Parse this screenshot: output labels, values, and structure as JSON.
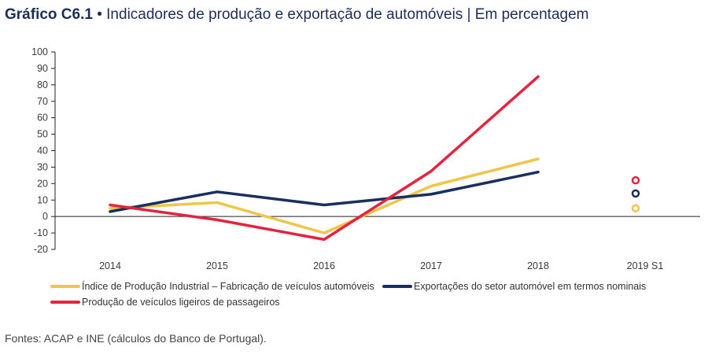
{
  "header": {
    "number": "Gráfico C6.1",
    "bullet": "•",
    "title": "Indicadores de produção e exportação de automóveis",
    "separator": "|",
    "unit": "Em percentagem"
  },
  "source": "Fontes: ACAP e INE (cálculos do Banco de Portugal).",
  "chart_data": {
    "type": "line",
    "title": "Indicadores de produção e exportação de automóveis",
    "ylabel": "Em percentagem",
    "xlabel": "",
    "ylim": [
      -20,
      100
    ],
    "yticks": [
      100,
      90,
      80,
      70,
      60,
      50,
      40,
      30,
      20,
      10,
      0,
      -10,
      -20
    ],
    "categories": [
      "2014",
      "2015",
      "2016",
      "2017",
      "2018",
      "2019 S1"
    ],
    "series": [
      {
        "name": "Índice de Produção Industrial – Fabricação de veículos automóveis",
        "color": "#f0c64a",
        "values": [
          5,
          8.5,
          -10,
          18.5,
          35,
          null
        ],
        "marker_2019": 5
      },
      {
        "name": "Exportações do setor automóvel em termos nominais",
        "color": "#1a2f5e",
        "values": [
          3,
          15,
          7,
          13.5,
          27,
          null
        ],
        "marker_2019": 14
      },
      {
        "name": "Produção de veículos ligeiros de passageiros",
        "color": "#e4243f",
        "values": [
          7,
          -2,
          -14,
          27.5,
          85,
          null
        ],
        "marker_2019": 22
      }
    ],
    "grid": false,
    "legend_position": "bottom"
  }
}
